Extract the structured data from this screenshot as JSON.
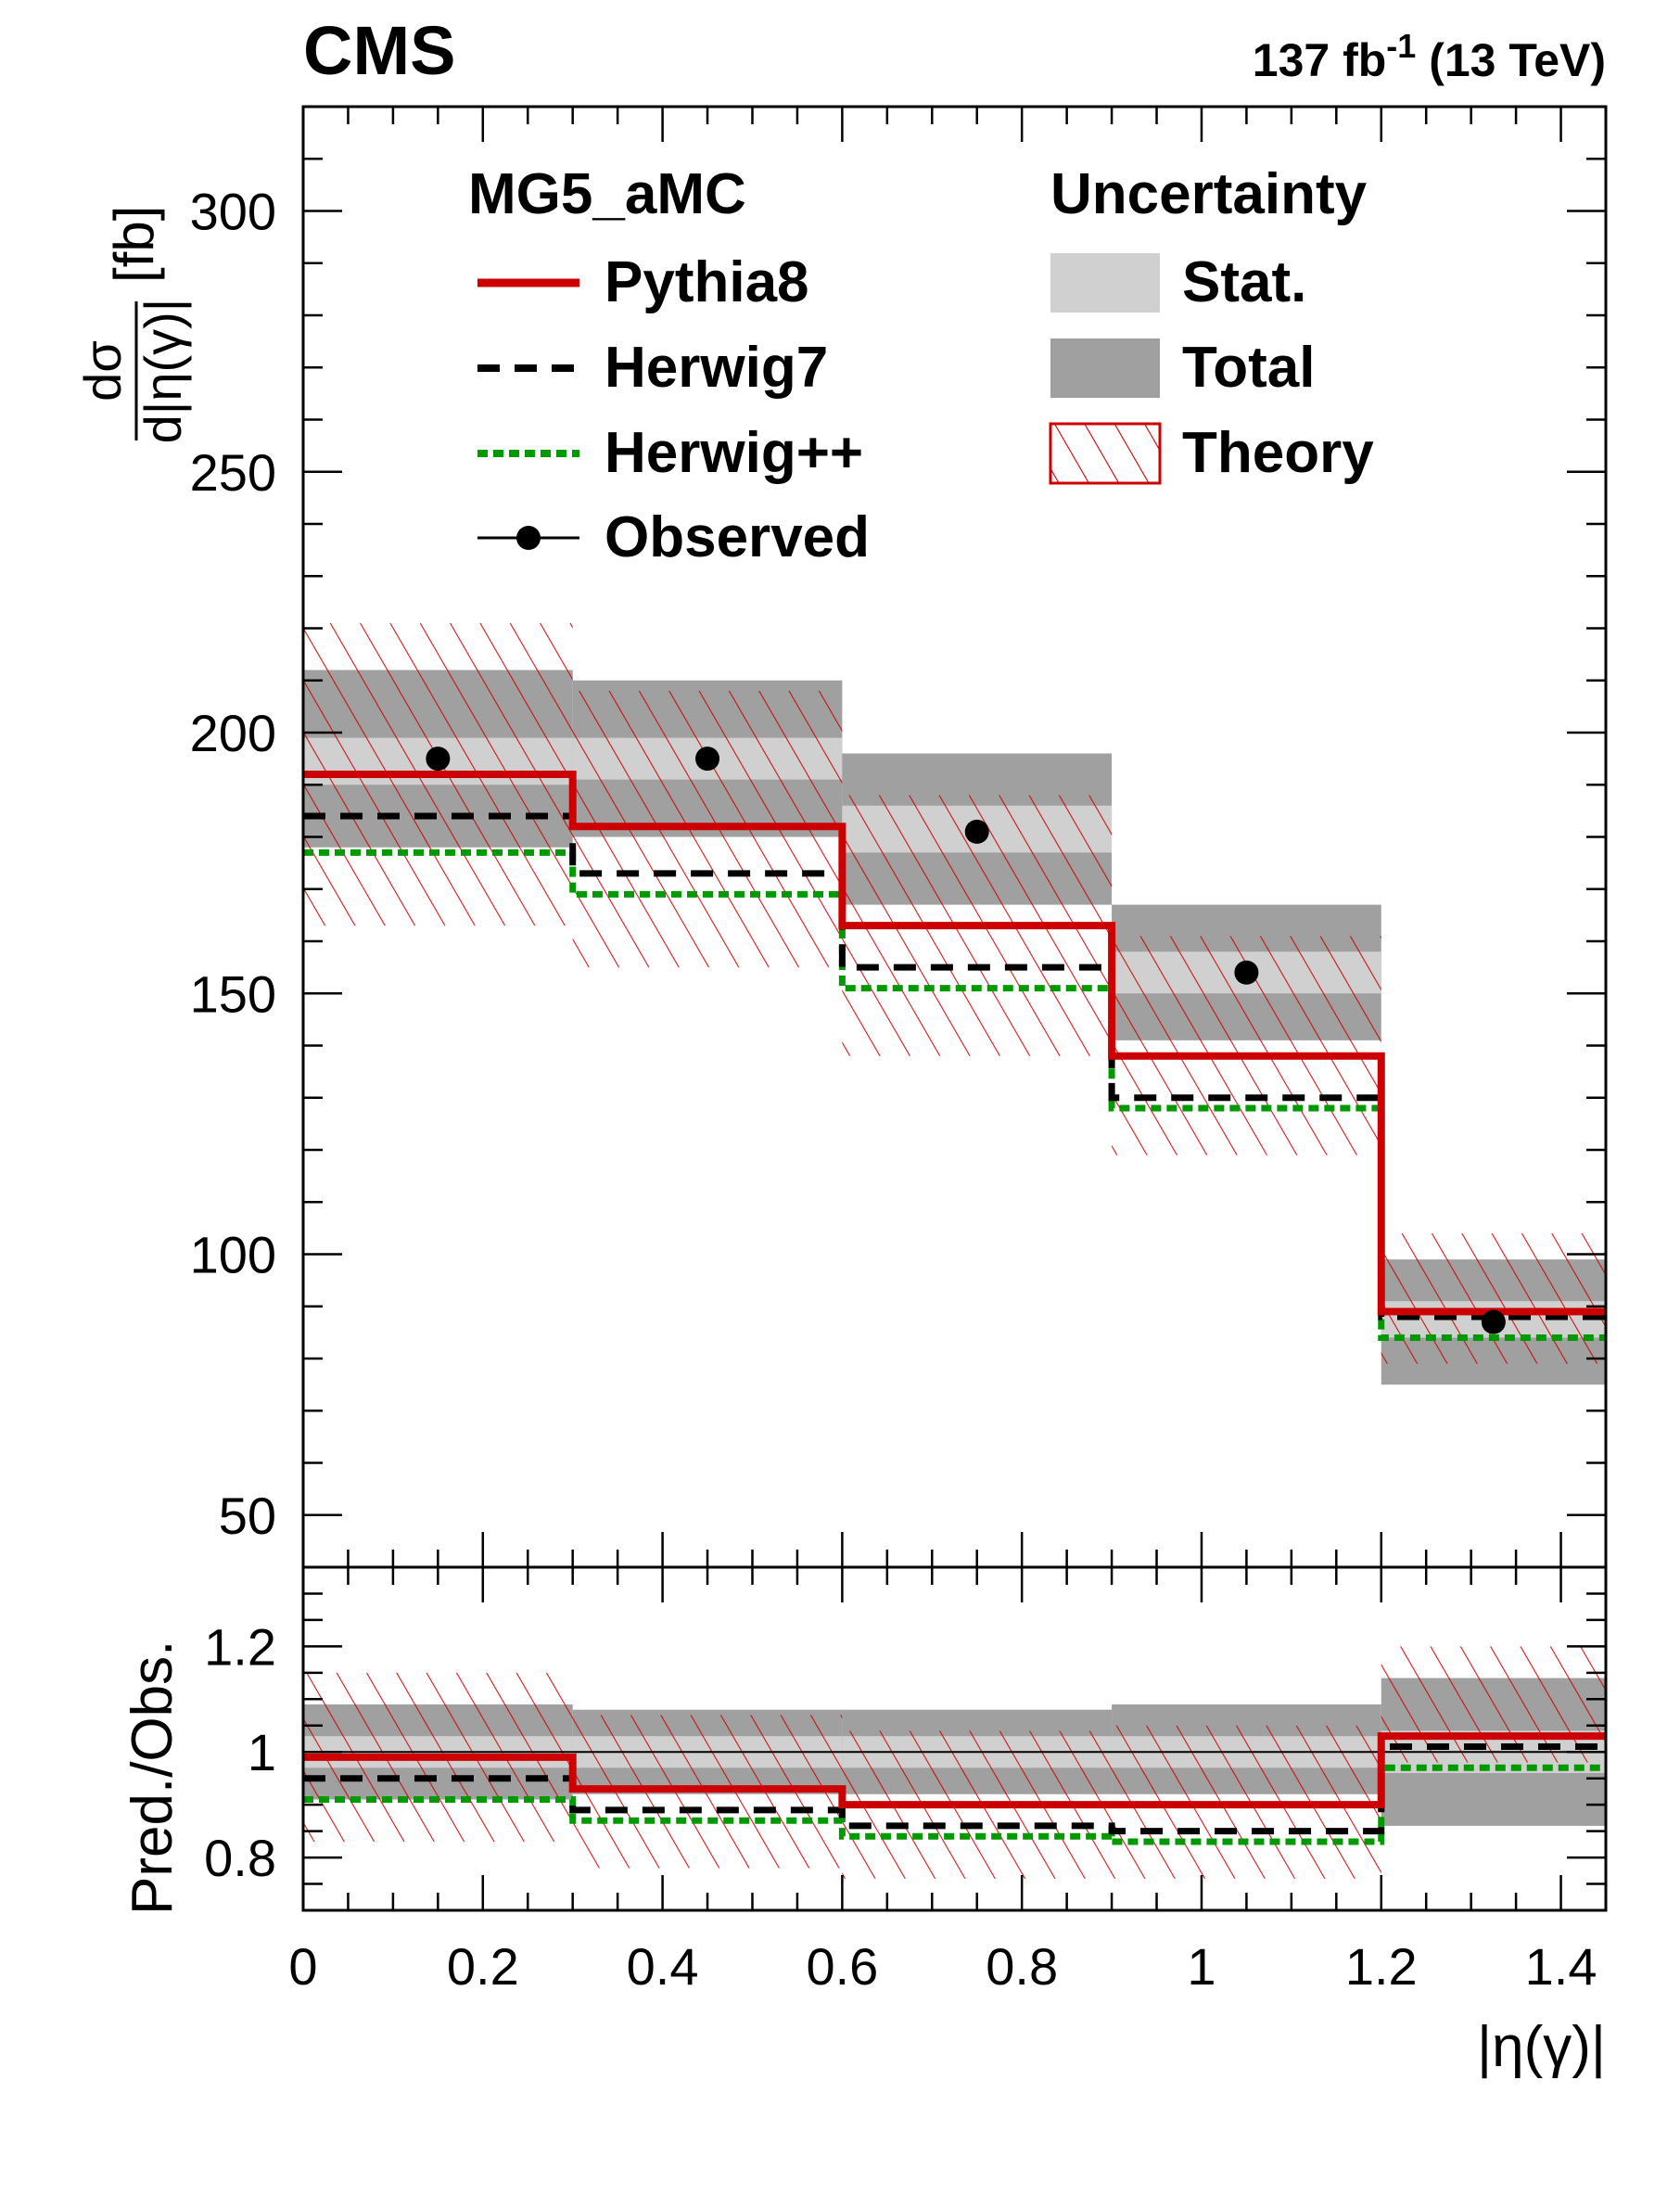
{
  "header": {
    "experiment": "CMS",
    "lumi_value": "137 fb",
    "lumi_exponent": "-1",
    "energy": " (13 TeV)"
  },
  "legend": {
    "generator_title": "MG5_aMC",
    "uncertainty_title": "Uncertainty",
    "entries": [
      "Pythia8",
      "Herwig7",
      "Herwig++",
      "Observed"
    ],
    "unc_entries": [
      "Stat.",
      "Total",
      "Theory"
    ]
  },
  "axes": {
    "upper_ylabel_num": "dσ",
    "upper_ylabel_den": "d|η(γ)|",
    "upper_ylabel_unit": "[fb]",
    "lower_ylabel": "Pred./Obs.",
    "xlabel": "|η(γ)|",
    "x_ticks": [
      "0",
      "0.2",
      "0.4",
      "0.6",
      "0.8",
      "1",
      "1.2",
      "1.4"
    ],
    "upper_y_ticks": [
      "50",
      "100",
      "150",
      "200",
      "250",
      "300"
    ],
    "lower_y_ticks": [
      "0.8",
      "1",
      "1.2"
    ]
  },
  "colors": {
    "pythia8": "#cc0000",
    "herwig7": "#000000",
    "herwigpp": "#009900",
    "stat_band": "#d0d0d0",
    "total_band": "#a0a0a0",
    "theory_hatch": "#cc0000"
  },
  "chart_data": [
    {
      "type": "line",
      "panel": "upper",
      "xlim": [
        0,
        1.45
      ],
      "ylim": [
        40,
        320
      ],
      "bins": [
        [
          0,
          0.3
        ],
        [
          0.3,
          0.6
        ],
        [
          0.6,
          0.9
        ],
        [
          0.9,
          1.2
        ],
        [
          1.2,
          1.45
        ]
      ],
      "observed": {
        "x": [
          0.15,
          0.45,
          0.75,
          1.05,
          1.325
        ],
        "y": [
          195,
          195,
          181,
          154,
          87
        ]
      },
      "stat_band": {
        "lo": [
          190,
          191,
          177,
          150,
          84
        ],
        "hi": [
          199,
          199,
          186,
          158,
          91
        ]
      },
      "total_band": {
        "lo": [
          178,
          180,
          167,
          141,
          75
        ],
        "hi": [
          212,
          210,
          196,
          167,
          99
        ]
      },
      "series": [
        {
          "name": "Pythia8",
          "values": [
            192,
            182,
            163,
            138,
            89
          ]
        },
        {
          "name": "Herwig7",
          "values": [
            184,
            173,
            155,
            130,
            88
          ]
        },
        {
          "name": "Herwig++",
          "values": [
            177,
            169,
            151,
            128,
            84
          ]
        }
      ],
      "theory_band": {
        "lo": [
          163,
          155,
          138,
          119,
          79
        ],
        "hi": [
          221,
          208,
          188,
          161,
          104
        ]
      }
    },
    {
      "type": "line",
      "panel": "lower",
      "xlim": [
        0,
        1.45
      ],
      "ylim": [
        0.7,
        1.35
      ],
      "bins": [
        [
          0,
          0.3
        ],
        [
          0.3,
          0.6
        ],
        [
          0.6,
          0.9
        ],
        [
          0.9,
          1.2
        ],
        [
          1.2,
          1.45
        ]
      ],
      "reference": 1.0,
      "stat_band": {
        "lo": [
          0.97,
          0.97,
          0.97,
          0.97,
          0.96
        ],
        "hi": [
          1.03,
          1.03,
          1.03,
          1.03,
          1.04
        ]
      },
      "total_band": {
        "lo": [
          0.91,
          0.92,
          0.92,
          0.92,
          0.86
        ],
        "hi": [
          1.09,
          1.08,
          1.08,
          1.09,
          1.14
        ]
      },
      "series": [
        {
          "name": "Pythia8",
          "values": [
            0.99,
            0.93,
            0.9,
            0.9,
            1.03
          ]
        },
        {
          "name": "Herwig7",
          "values": [
            0.95,
            0.89,
            0.86,
            0.85,
            1.01
          ]
        },
        {
          "name": "Herwig++",
          "values": [
            0.91,
            0.87,
            0.84,
            0.83,
            0.97
          ]
        }
      ],
      "theory_band": {
        "lo": [
          0.83,
          0.78,
          0.76,
          0.76,
          0.98
        ],
        "hi": [
          1.15,
          1.07,
          1.04,
          1.05,
          1.2
        ]
      }
    }
  ]
}
